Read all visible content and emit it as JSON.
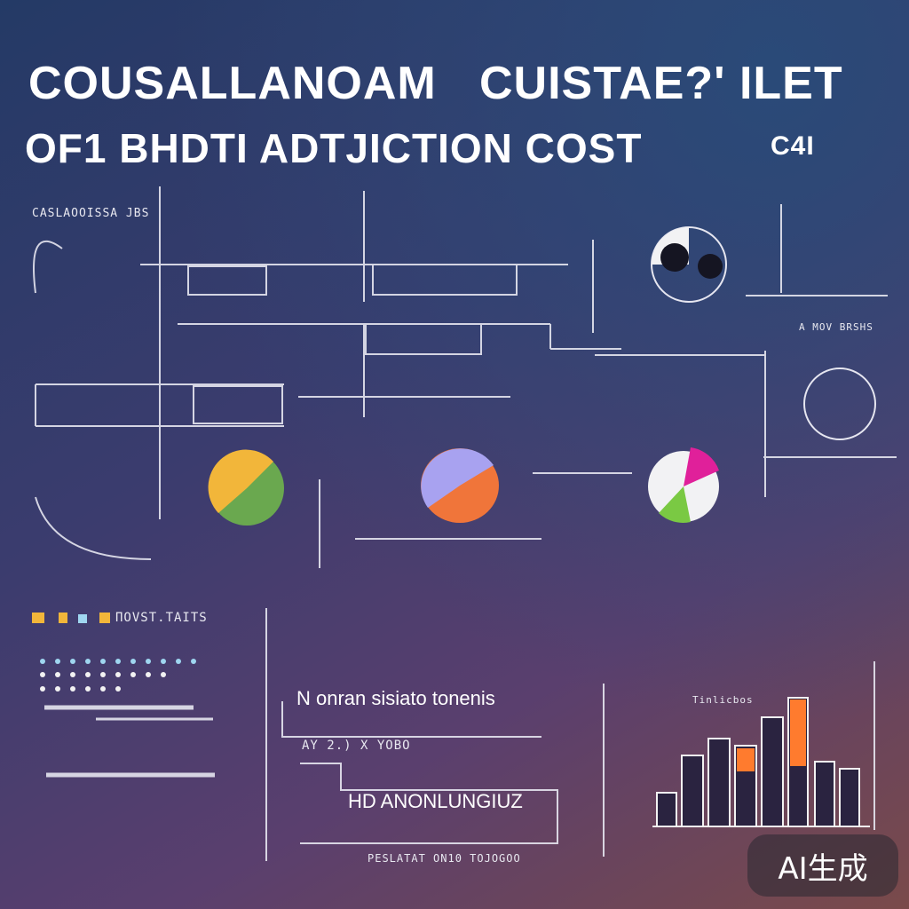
{
  "title": {
    "line1_left": "COUSALLANOAM",
    "line1_right": "CUISTAE?' ILET",
    "line2_left": "OF1 BHDTI ADTJICTION COST",
    "line2_right": "C4I"
  },
  "labels": {
    "top_left": "CASLAOOISSA JBS",
    "legend_label": "ΠOVST.TAITS",
    "text_row1": "N onran sisiato tonenis",
    "text_row2": "AY 2.) X YOBO",
    "text_row3": "HD ANONLUNGIUZ",
    "text_row4": "PESLATAT ON10 TOJOGOO",
    "right_mid": "A MOV BRSHS",
    "chart_caption": "Tinlicbos"
  },
  "pies": [
    {
      "name": "pie-yellow-green",
      "colors": [
        "#f2b63a",
        "#6aa84f"
      ]
    },
    {
      "name": "pie-lavender-orange",
      "colors": [
        "#a8a2f0",
        "#f0753a"
      ]
    },
    {
      "name": "pie-white-green-magenta",
      "colors": [
        "#f2f2f4",
        "#7ac943",
        "#e0209a"
      ]
    }
  ],
  "watermark": "AI生成",
  "colors": {
    "accent_orange": "#ff7b2e",
    "accent_yellow": "#f2b63a"
  }
}
